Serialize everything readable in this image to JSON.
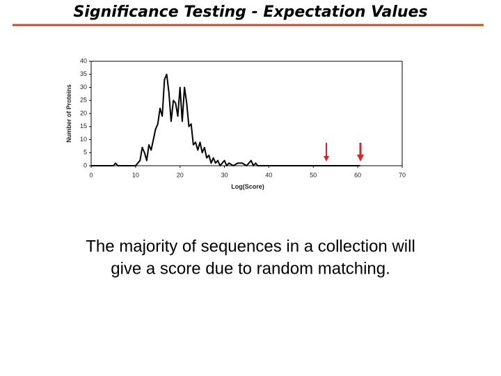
{
  "slide_title": "Significance Testing - Expectation Values",
  "caption": [
    "The majority of sequences in a collection will",
    "give a score due to random matching."
  ],
  "chart_data": {
    "type": "line",
    "x_label": "Log(Score)",
    "y_label": "Number of Proteins",
    "x": [
      0,
      5,
      5.5,
      6,
      10,
      11,
      11.5,
      12,
      12.5,
      13,
      13.5,
      14,
      14.5,
      15,
      15.5,
      16,
      16.5,
      17,
      17.5,
      18,
      18.5,
      19,
      19.5,
      20,
      20.5,
      21,
      21.5,
      22,
      22.5,
      23,
      23.5,
      24,
      24.5,
      25,
      25.5,
      26,
      26.5,
      27,
      27.5,
      28,
      28.5,
      29,
      29.5,
      30,
      30.5,
      31,
      32,
      33,
      34,
      35,
      36,
      36.5,
      37,
      37.5,
      40,
      53,
      60.5
    ],
    "series": [
      {
        "name": "Proteins",
        "color": "#000000",
        "values": [
          0,
          0,
          1,
          0,
          0,
          2,
          7,
          5,
          2,
          8,
          6,
          10,
          14,
          16,
          22,
          19,
          33,
          35,
          28,
          17,
          25,
          24,
          19,
          30,
          17,
          30,
          24,
          15,
          16,
          8,
          9,
          6,
          9,
          5,
          7,
          3,
          4,
          1,
          3,
          1,
          2,
          0,
          1,
          2,
          0,
          1,
          0,
          1,
          1,
          0,
          2,
          0,
          1,
          0,
          0,
          0,
          0
        ]
      }
    ],
    "xlim": [
      0,
      70
    ],
    "xticks": [
      0,
      10,
      20,
      30,
      40,
      50,
      60,
      70
    ],
    "ylim": [
      0,
      40
    ],
    "yticks": [
      0,
      5,
      10,
      15,
      20,
      25,
      30,
      35,
      40
    ],
    "grid": false
  }
}
